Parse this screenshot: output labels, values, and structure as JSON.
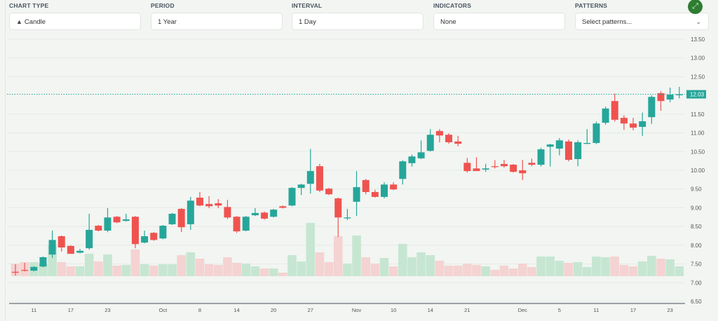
{
  "controls": {
    "chart_type": {
      "label": "CHART TYPE",
      "value": "Candle",
      "icon": "candle-icon"
    },
    "period": {
      "label": "PERIOD",
      "value": "1 Year"
    },
    "interval": {
      "label": "INTERVAL",
      "value": "1 Day"
    },
    "indicators": {
      "label": "INDICATORS",
      "value": "None"
    },
    "patterns": {
      "label": "PATTERNS",
      "placeholder": "Select patterns..."
    },
    "expand_icon": "expand-icon"
  },
  "colors": {
    "up": "#26a69a",
    "down": "#ef5350",
    "vol_up": "#c6e6d2",
    "vol_down": "#f4d3d2",
    "accent": "#2e7d32"
  },
  "chart_data": {
    "type": "candlestick",
    "title": "",
    "ylim": [
      6.5,
      13.5
    ],
    "y_ticks": [
      "13.50",
      "13.00",
      "12.50",
      "11.50",
      "11.00",
      "10.50",
      "10.00",
      "9.50",
      "9.00",
      "8.50",
      "8.00",
      "7.50",
      "7.00",
      "6.50"
    ],
    "last_price": "12.03",
    "x_ticks": [
      {
        "i": 2,
        "label": "11"
      },
      {
        "i": 6,
        "label": "17"
      },
      {
        "i": 10,
        "label": "23"
      },
      {
        "i": 16,
        "label": "Oct"
      },
      {
        "i": 20,
        "label": "8"
      },
      {
        "i": 24,
        "label": "14"
      },
      {
        "i": 28,
        "label": "20"
      },
      {
        "i": 32,
        "label": "27"
      },
      {
        "i": 37,
        "label": "Nov"
      },
      {
        "i": 41,
        "label": "10"
      },
      {
        "i": 45,
        "label": "14"
      },
      {
        "i": 49,
        "label": "21"
      },
      {
        "i": 55,
        "label": "Dec"
      },
      {
        "i": 59,
        "label": "5"
      },
      {
        "i": 63,
        "label": "11"
      },
      {
        "i": 67,
        "label": "17"
      },
      {
        "i": 71,
        "label": "23"
      }
    ],
    "ohlc": [
      [
        7.29,
        7.49,
        7.19,
        7.28
      ],
      [
        7.34,
        7.53,
        7.3,
        7.33
      ],
      [
        7.32,
        7.44,
        7.3,
        7.42
      ],
      [
        7.43,
        7.7,
        7.41,
        7.68
      ],
      [
        7.75,
        8.39,
        7.66,
        8.14
      ],
      [
        8.24,
        8.26,
        7.83,
        7.94
      ],
      [
        7.98,
        8.0,
        7.77,
        7.77
      ],
      [
        7.8,
        7.9,
        7.78,
        7.85
      ],
      [
        7.92,
        8.84,
        7.88,
        8.41
      ],
      [
        8.52,
        8.54,
        8.37,
        8.39
      ],
      [
        8.39,
        8.99,
        8.35,
        8.74
      ],
      [
        8.76,
        8.78,
        8.59,
        8.61
      ],
      [
        8.65,
        8.84,
        8.63,
        8.69
      ],
      [
        8.76,
        8.78,
        7.92,
        8.03
      ],
      [
        8.07,
        8.39,
        8.05,
        8.24
      ],
      [
        8.33,
        8.35,
        8.12,
        8.14
      ],
      [
        8.18,
        8.54,
        8.16,
        8.52
      ],
      [
        8.56,
        8.86,
        8.54,
        8.84
      ],
      [
        8.97,
        8.99,
        8.35,
        8.48
      ],
      [
        8.56,
        9.29,
        8.41,
        9.19
      ],
      [
        9.27,
        9.42,
        9.04,
        9.06
      ],
      [
        9.1,
        9.31,
        8.99,
        9.04
      ],
      [
        9.12,
        9.23,
        8.99,
        9.06
      ],
      [
        9.02,
        9.21,
        8.7,
        8.74
      ],
      [
        8.76,
        8.78,
        8.33,
        8.37
      ],
      [
        8.39,
        8.78,
        8.37,
        8.76
      ],
      [
        8.8,
        8.99,
        8.78,
        8.86
      ],
      [
        8.87,
        8.9,
        8.68,
        8.71
      ],
      [
        8.76,
        8.97,
        8.74,
        8.95
      ],
      [
        9.04,
        9.06,
        8.98,
        9.0
      ],
      [
        9.06,
        9.55,
        9.04,
        9.53
      ],
      [
        9.53,
        9.64,
        9.34,
        9.62
      ],
      [
        9.64,
        10.57,
        9.38,
        9.98
      ],
      [
        10.11,
        10.17,
        9.42,
        9.46
      ],
      [
        9.51,
        9.53,
        9.34,
        9.36
      ],
      [
        9.25,
        9.27,
        8.22,
        8.74
      ],
      [
        8.74,
        8.97,
        8.67,
        8.74
      ],
      [
        9.16,
        9.98,
        8.78,
        9.55
      ],
      [
        9.74,
        9.77,
        9.36,
        9.42
      ],
      [
        9.42,
        9.48,
        9.27,
        9.29
      ],
      [
        9.29,
        9.68,
        9.25,
        9.62
      ],
      [
        9.62,
        9.68,
        9.47,
        9.49
      ],
      [
        9.77,
        10.27,
        9.62,
        10.24
      ],
      [
        10.19,
        10.42,
        10.1,
        10.37
      ],
      [
        10.32,
        10.8,
        10.3,
        10.48
      ],
      [
        10.52,
        11.1,
        10.5,
        10.95
      ],
      [
        11.05,
        11.1,
        10.75,
        10.93
      ],
      [
        10.95,
        10.99,
        10.71,
        10.75
      ],
      [
        10.77,
        10.92,
        10.64,
        10.71
      ],
      [
        10.2,
        10.33,
        9.94,
        9.98
      ],
      [
        10.05,
        10.35,
        9.98,
        9.98
      ],
      [
        10.02,
        10.17,
        9.96,
        10.05
      ],
      [
        10.11,
        10.27,
        10.05,
        10.09
      ],
      [
        10.17,
        10.28,
        10.07,
        10.11
      ],
      [
        10.15,
        10.17,
        9.94,
        9.96
      ],
      [
        10.0,
        10.28,
        9.74,
        9.92
      ],
      [
        10.2,
        10.31,
        10.11,
        10.15
      ],
      [
        10.15,
        10.6,
        10.1,
        10.56
      ],
      [
        10.63,
        10.71,
        10.1,
        10.69
      ],
      [
        10.58,
        10.86,
        10.4,
        10.8
      ],
      [
        10.77,
        10.82,
        10.24,
        10.28
      ],
      [
        10.3,
        10.8,
        10.11,
        10.75
      ],
      [
        10.73,
        11.1,
        10.7,
        10.73
      ],
      [
        10.73,
        11.3,
        10.7,
        11.25
      ],
      [
        11.27,
        11.7,
        11.22,
        11.65
      ],
      [
        11.85,
        12.05,
        11.3,
        11.35
      ],
      [
        11.4,
        11.47,
        11.08,
        11.25
      ],
      [
        11.25,
        11.4,
        11.07,
        11.14
      ],
      [
        11.16,
        11.54,
        10.92,
        11.31
      ],
      [
        11.42,
        12.0,
        11.24,
        11.96
      ],
      [
        12.06,
        12.11,
        11.59,
        11.85
      ],
      [
        11.89,
        12.21,
        11.82,
        12.02
      ],
      [
        12.03,
        12.23,
        11.92,
        12.03
      ]
    ],
    "volume": [
      18,
      20,
      20,
      18,
      45,
      20,
      14,
      14,
      32,
      21,
      31,
      15,
      16,
      38,
      17,
      15,
      17,
      17,
      30,
      34,
      25,
      17,
      16,
      27,
      19,
      18,
      14,
      11,
      11,
      5,
      30,
      21,
      76,
      34,
      20,
      57,
      18,
      58,
      27,
      18,
      26,
      14,
      46,
      27,
      34,
      30,
      22,
      15,
      15,
      18,
      16,
      14,
      9,
      15,
      11,
      18,
      13,
      28,
      28,
      22,
      19,
      20,
      13,
      28,
      27,
      28,
      16,
      14,
      21,
      29,
      25,
      24,
      14
    ]
  }
}
